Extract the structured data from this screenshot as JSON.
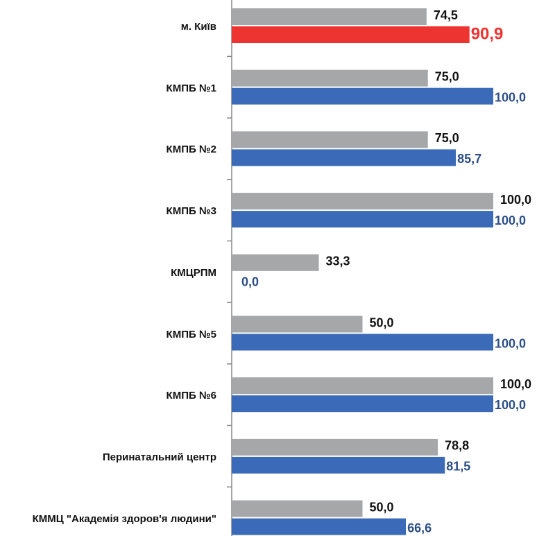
{
  "chart_data": {
    "type": "hbar",
    "categories": [
      "м. Київ",
      "КМПБ №1",
      "КМПБ №2",
      "КМПБ №3",
      "КМЦРПМ",
      "КМПБ №5",
      "КМПБ №6",
      "Перинатальний центр",
      "КММЦ \"Академія здоров'я людини\""
    ],
    "xlim": [
      0,
      100
    ],
    "series": [
      {
        "color": "#a5a7a8",
        "label_color": "#111111",
        "values": [
          74.5,
          75.0,
          75.0,
          100.0,
          33.3,
          50.0,
          100.0,
          78.8,
          50.0
        ],
        "value_labels": [
          "74,5",
          "75,0",
          "75,0",
          "100,0",
          "33,3",
          "50,0",
          "100,0",
          "78,8",
          "50,0"
        ]
      },
      {
        "color": "#3b6bb8",
        "label_color": "#2b4e86",
        "colors": [
          "#ee3431",
          "#3b6bb8",
          "#3b6bb8",
          "#3b6bb8",
          "#3b6bb8",
          "#3b6bb8",
          "#3b6bb8",
          "#3b6bb8",
          "#3b6bb8"
        ],
        "label_colors": [
          "#ee3431",
          "#2b4e86",
          "#2b4e86",
          "#2b4e86",
          "#2b4e86",
          "#2b4e86",
          "#2b4e86",
          "#2b4e86",
          "#2b4e86"
        ],
        "values": [
          90.9,
          100.0,
          85.7,
          100.0,
          0.0,
          100.0,
          100.0,
          81.5,
          66.6
        ],
        "value_labels": [
          "90,9",
          "100,0",
          "85,7",
          "100,0",
          "0,0",
          "100,0",
          "100,0",
          "81,5",
          "66,6"
        ]
      }
    ]
  }
}
